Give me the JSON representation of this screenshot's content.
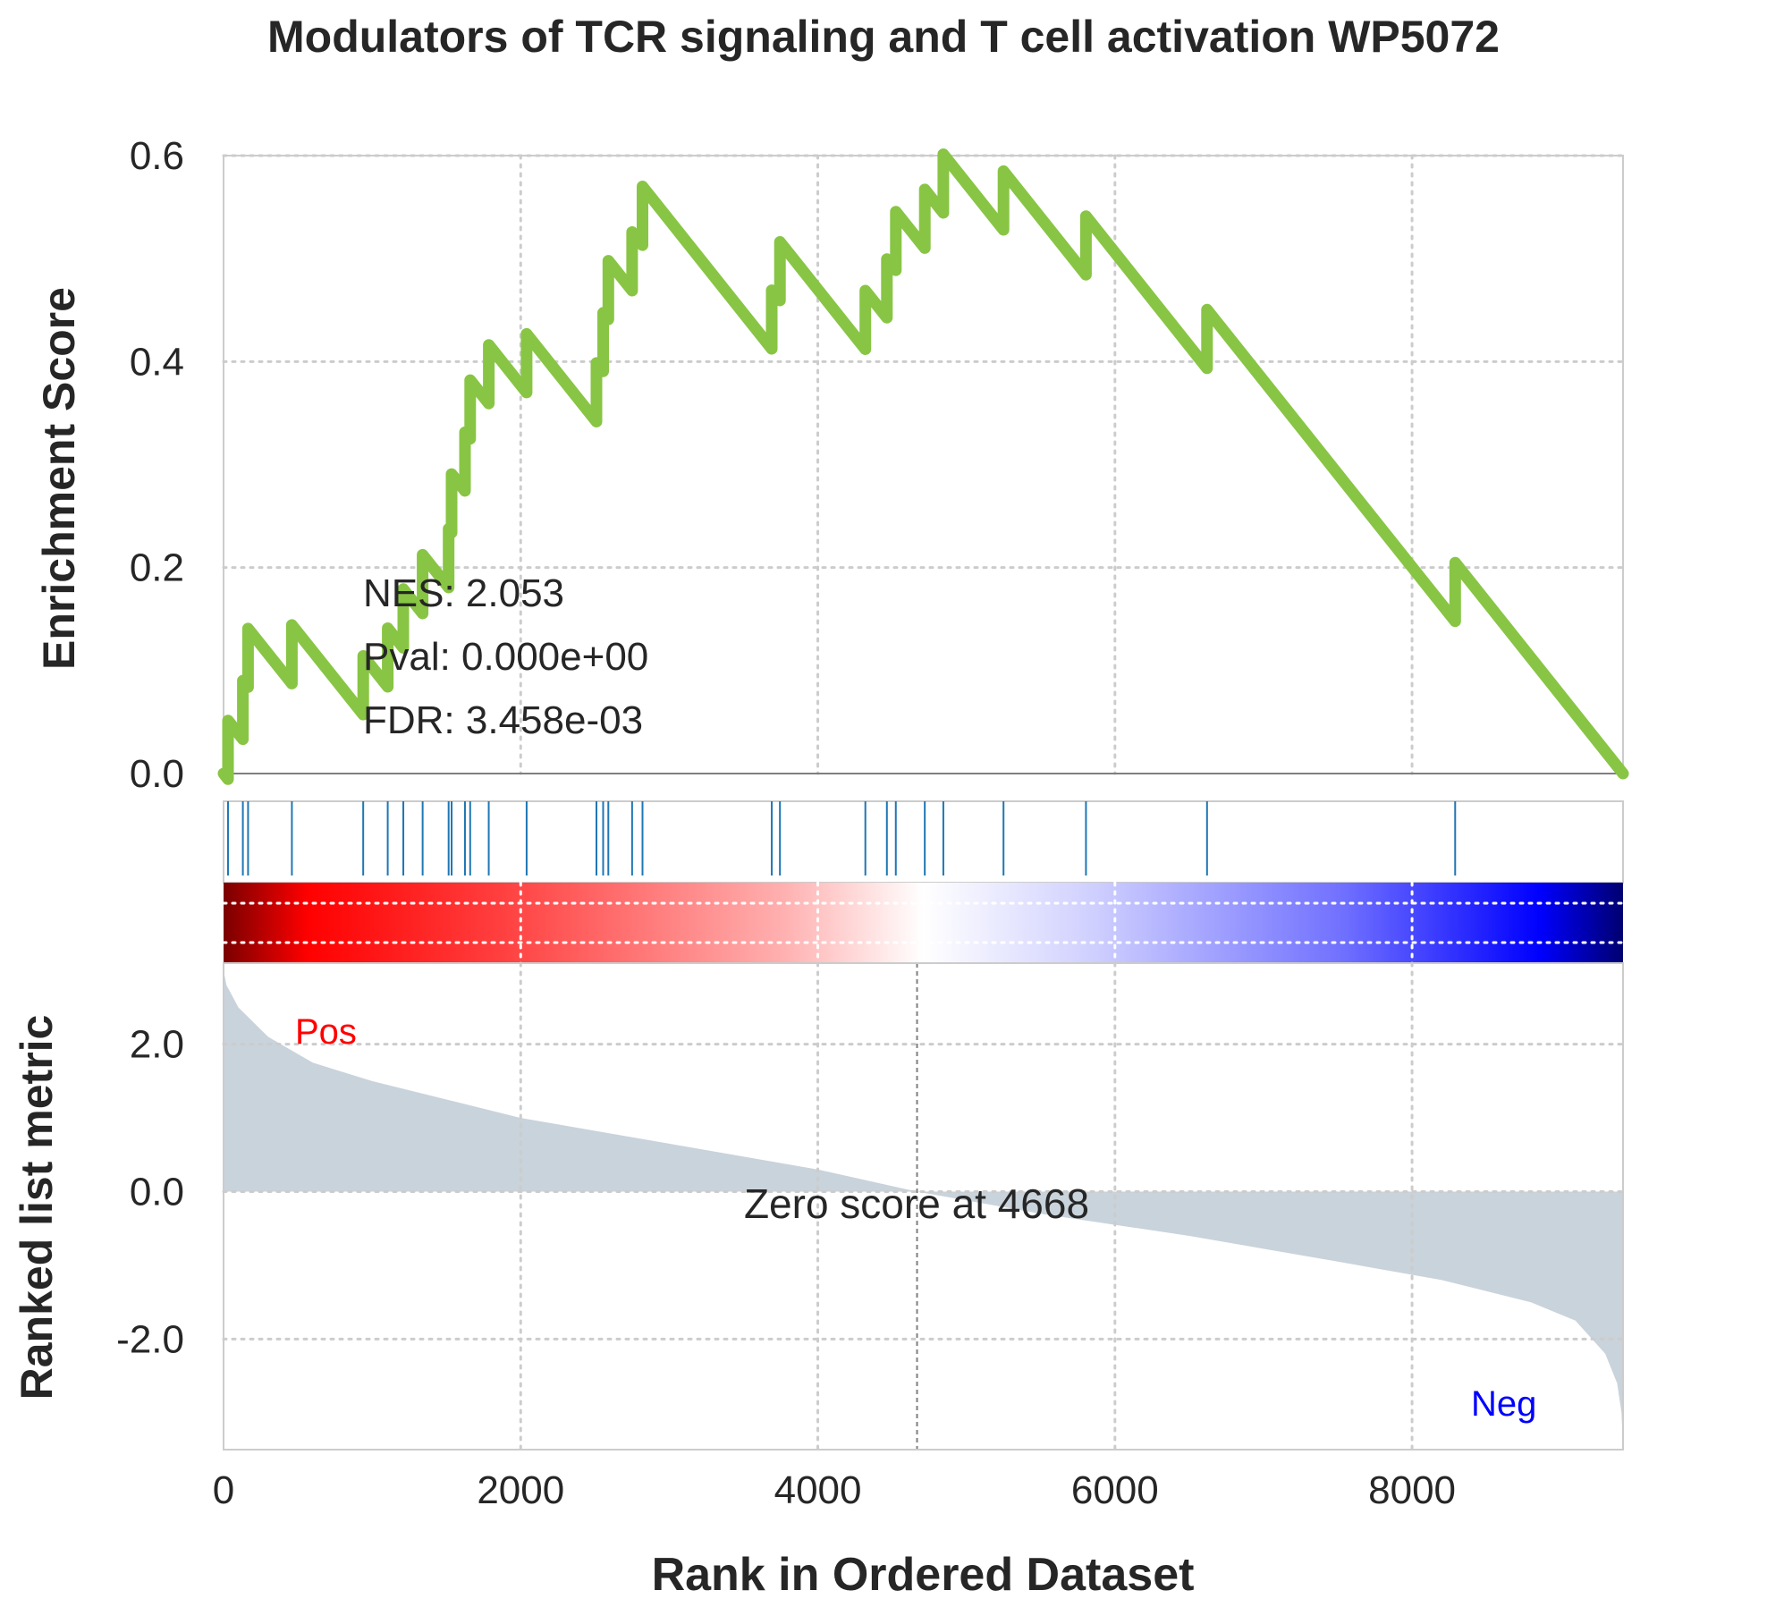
{
  "chart_data": {
    "type": "line",
    "title": "Modulators of TCR signaling and T cell activation WP5072",
    "xlabel": "Rank in Ordered Dataset",
    "xlim": [
      0,
      9420
    ],
    "x_ticks": [
      0,
      2000,
      4000,
      6000,
      8000
    ],
    "grid": true,
    "colors": {
      "es_line": "#88c544",
      "hits": "#1f77b4",
      "metric_fill": "#c9d3db",
      "pos_label": "#ff0000",
      "neg_label": "#0000ff",
      "text": "#262626",
      "grid": "#cccccc",
      "frame": "#cccccc"
    },
    "enrichment_panel": {
      "ylabel": "Enrichment Score",
      "ylim": [
        0,
        0.6
      ],
      "y_ticks": [
        "0.0",
        "0.2",
        "0.4",
        "0.6"
      ],
      "y_tick_values": [
        0,
        0.2,
        0.4,
        0.6
      ],
      "stats": [
        "NES: 2.053",
        "Pval: 0.000e+00",
        "FDR: 3.458e-03"
      ],
      "hits": [
        30,
        130,
        165,
        460,
        940,
        1105,
        1210,
        1340,
        1515,
        1535,
        1625,
        1660,
        1785,
        2040,
        2510,
        2555,
        2590,
        2750,
        2820,
        3690,
        3745,
        4320,
        4465,
        4525,
        4720,
        4845,
        5250,
        5805,
        6620,
        8290
      ],
      "es_peak": {
        "x": 2820,
        "y": 0.57
      },
      "es_end": {
        "x": 9420,
        "y": 0.0
      }
    },
    "metric_panel": {
      "ylabel": "Ranked list metric",
      "ylim": [
        -3.5,
        3.1
      ],
      "y_ticks": [
        "2.0",
        "0.0",
        "-2.0"
      ],
      "y_tick_values": [
        2.0,
        0.0,
        -2.0
      ],
      "pos_label": "Pos",
      "neg_label": "Neg",
      "zero_cross_rank": 4668,
      "zero_text": "Zero score at 4668",
      "profile": [
        [
          0,
          3.0
        ],
        [
          20,
          2.8
        ],
        [
          100,
          2.5
        ],
        [
          300,
          2.1
        ],
        [
          600,
          1.75
        ],
        [
          1000,
          1.5
        ],
        [
          1500,
          1.25
        ],
        [
          2000,
          1.0
        ],
        [
          3000,
          0.65
        ],
        [
          4000,
          0.3
        ],
        [
          4668,
          0.0
        ],
        [
          5500,
          -0.3
        ],
        [
          6500,
          -0.6
        ],
        [
          7500,
          -0.95
        ],
        [
          8200,
          -1.2
        ],
        [
          8800,
          -1.5
        ],
        [
          9100,
          -1.75
        ],
        [
          9300,
          -2.2
        ],
        [
          9380,
          -2.6
        ],
        [
          9410,
          -3.0
        ],
        [
          9420,
          -3.5
        ]
      ]
    }
  }
}
